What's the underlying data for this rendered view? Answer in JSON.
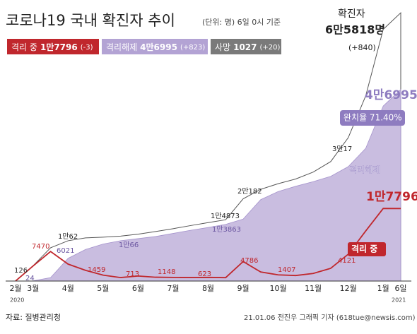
{
  "header": {
    "title": "코로나19 국내 확진자 추이",
    "subtitle": "(단위: 명) 6일 0시 기준",
    "legend": [
      {
        "label": "격리 중",
        "value": "1만7796",
        "change": "(-3)"
      },
      {
        "label": "격리해제",
        "value": "4만6995",
        "change": "(+823)"
      },
      {
        "label": "사망",
        "value": "1027",
        "change": "(+20)"
      }
    ],
    "total": {
      "label": "확진자",
      "value": "6만5818명",
      "change": "(+840)"
    }
  },
  "chart_data": {
    "type": "area",
    "categories": [
      "2월",
      "3월",
      null,
      "4월",
      null,
      "5월",
      null,
      "6월",
      null,
      "7월",
      null,
      "8월",
      null,
      "9월",
      null,
      "10월",
      null,
      "11월",
      null,
      "12월",
      null,
      "1월",
      "6일"
    ],
    "years": [
      "2020",
      "2021"
    ],
    "ylim": [
      0,
      70000
    ],
    "series": [
      {
        "name": "확진자",
        "style": "area",
        "color": "#ffffff",
        "values": [
          30,
          3736,
          8162,
          9887,
          10591,
          10774,
          11018,
          11503,
          12155,
          12850,
          13612,
          14336,
          15039,
          20182,
          22504,
          23889,
          25035,
          26732,
          29311,
          35163,
          45442,
          61769,
          65818
        ]
      },
      {
        "name": "격리해제",
        "style": "area",
        "color": "#c9bde0",
        "values": [
          10,
          30,
          834,
          5567,
          7757,
          9072,
          9904,
          10405,
          10930,
          11684,
          12455,
          13133,
          13901,
          15198,
          19970,
          21958,
          23249,
          24395,
          25690,
          28065,
          32559,
          42953,
          46995
        ]
      },
      {
        "name": "격리 중",
        "style": "line",
        "color": "#c0272d",
        "values": [
          20,
          3689,
          7253,
          4155,
          2627,
          1454,
          852,
          1236,
          938,
          884,
          856,
          902,
          836,
          4786,
          2220,
          1516,
          1354,
          1861,
          3120,
          6576,
          12293,
          17812,
          17796
        ]
      }
    ],
    "annotations": [
      "126",
      "24",
      "7470",
      "6021",
      "1만62",
      "1459",
      "713",
      "1148",
      "623",
      "4786",
      "1407",
      "4121",
      "1만66",
      "1만4873",
      "1만3863",
      "2만182",
      "3만17",
      "격리해제",
      "격리 중",
      "1만7796",
      "4만6995",
      "완치율 71.40%"
    ]
  },
  "footer": {
    "source": "자료: 질병관리청",
    "credit": "21.01.06 전진우 그래픽 기자 (618tue@newsis.com)"
  }
}
